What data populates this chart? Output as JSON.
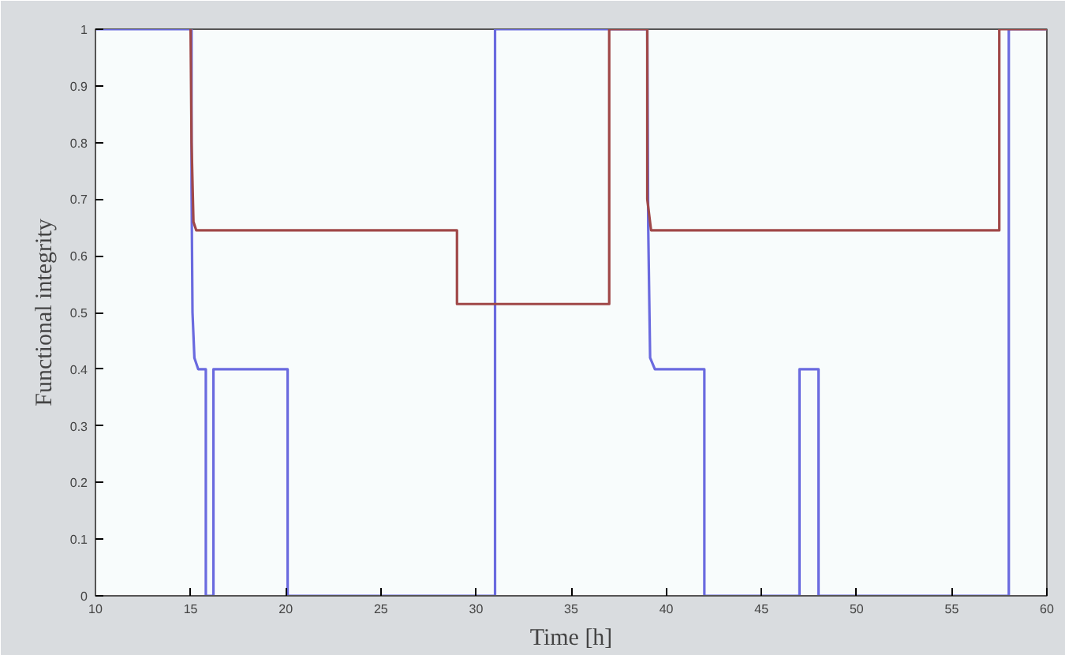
{
  "chart_data": {
    "type": "line",
    "xlabel": "Time [h]",
    "ylabel": "Functional integrity",
    "xlim": [
      10,
      60
    ],
    "ylim": [
      0,
      1
    ],
    "xticks": [
      10,
      15,
      20,
      25,
      30,
      35,
      40,
      45,
      50,
      55,
      60
    ],
    "yticks": [
      0,
      0.1,
      0.2,
      0.3,
      0.4,
      0.5,
      0.6,
      0.7,
      0.8,
      0.9,
      1
    ],
    "grid": false,
    "line_style": "solid",
    "series": [
      {
        "color": "#6a6adf",
        "x": [
          10,
          15.05,
          15.05,
          15.1,
          15.2,
          15.4,
          15.8,
          15.8,
          16.2,
          16.2,
          20.1,
          20.1,
          31,
          31,
          39,
          39.05,
          39.15,
          39.4,
          42,
          42,
          47,
          47,
          48,
          48,
          58,
          58,
          60
        ],
        "values": [
          1,
          1,
          0.72,
          0.5,
          0.42,
          0.4,
          0.4,
          0,
          0,
          0.4,
          0.4,
          0,
          0,
          1,
          1,
          0.65,
          0.42,
          0.4,
          0.4,
          0,
          0,
          0.4,
          0.4,
          0,
          0,
          1,
          1
        ]
      },
      {
        "color": "#a04848",
        "x": [
          15,
          15.05,
          15.15,
          15.3,
          29,
          29,
          37,
          37,
          39,
          39,
          39.2,
          57.5,
          57.5,
          60
        ],
        "values": [
          1,
          0.8,
          0.66,
          0.645,
          0.645,
          0.515,
          0.515,
          1,
          1,
          0.7,
          0.645,
          0.645,
          1,
          1
        ]
      }
    ]
  }
}
